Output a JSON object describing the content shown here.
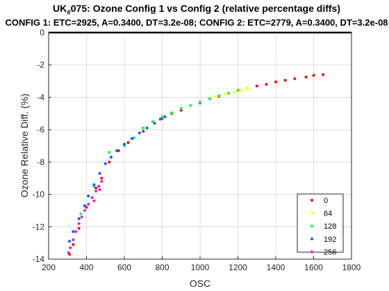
{
  "chart_data": {
    "type": "scatter",
    "title_prefix": "UK",
    "title_sub": "#",
    "title_rest": "075: Ozone Config 1 vs Config 2 (relative percentage diffs)",
    "subtitle": "CONFIG 1: ETC=2925, A=0.3400, DT=3.2e-08; CONFIG 2: ETC=2779, A=0.3400, DT=3.2e-08",
    "xlabel": "OSC",
    "ylabel": "Ozone Relative Diff. (%)",
    "xlim": [
      200,
      1800
    ],
    "ylim": [
      -14,
      0
    ],
    "xticks": [
      200,
      400,
      600,
      800,
      1000,
      1200,
      1400,
      1600,
      1800
    ],
    "yticks": [
      0,
      -2,
      -4,
      -6,
      -8,
      -10,
      -12,
      -14
    ],
    "grid": true,
    "legend_position": "bottom-right",
    "series": [
      {
        "name": "0",
        "color": "#ff0000",
        "points": [
          [
            310,
            -13.7
          ],
          [
            330,
            -13.1
          ],
          [
            360,
            -12.1
          ],
          [
            400,
            -10.8
          ],
          [
            450,
            -9.6
          ],
          [
            480,
            -9.0
          ],
          [
            520,
            -8.0
          ],
          [
            570,
            -7.3
          ],
          [
            620,
            -6.8
          ],
          [
            700,
            -6.1
          ],
          [
            800,
            -5.3
          ],
          [
            850,
            -5.0
          ],
          [
            900,
            -4.8
          ],
          [
            1000,
            -4.35
          ],
          [
            1100,
            -3.95
          ],
          [
            1200,
            -3.6
          ],
          [
            1300,
            -3.3
          ],
          [
            1400,
            -3.05
          ],
          [
            1500,
            -2.85
          ],
          [
            1600,
            -2.65
          ],
          [
            1650,
            -2.6
          ],
          [
            1560,
            -2.75
          ],
          [
            1450,
            -2.95
          ],
          [
            1350,
            -3.2
          ],
          [
            1250,
            -3.45
          ]
        ]
      },
      {
        "name": "64",
        "color": "#ffff00",
        "points": [
          [
            1100,
            -3.9
          ],
          [
            1150,
            -3.75
          ],
          [
            1200,
            -3.6
          ],
          [
            1250,
            -3.45
          ],
          [
            1130,
            -3.8
          ],
          [
            1180,
            -3.68
          ],
          [
            1080,
            -3.95
          ],
          [
            1220,
            -3.55
          ]
        ]
      },
      {
        "name": "128",
        "color": "#00ff40",
        "points": [
          [
            370,
            -11.2
          ],
          [
            440,
            -9.5
          ],
          [
            520,
            -7.4
          ],
          [
            600,
            -7.0
          ],
          [
            650,
            -6.5
          ],
          [
            700,
            -5.9
          ],
          [
            750,
            -5.5
          ],
          [
            800,
            -5.2
          ],
          [
            850,
            -4.95
          ],
          [
            900,
            -4.7
          ],
          [
            950,
            -4.5
          ],
          [
            1000,
            -4.3
          ],
          [
            1050,
            -4.1
          ],
          [
            1100,
            -3.9
          ],
          [
            1150,
            -3.75
          ],
          [
            1200,
            -3.55
          ]
        ]
      },
      {
        "name": "192",
        "color": "#0060ff",
        "points": [
          [
            310,
            -12.9
          ],
          [
            330,
            -12.3
          ],
          [
            360,
            -11.5
          ],
          [
            390,
            -10.7
          ],
          [
            410,
            -10.1
          ],
          [
            440,
            -9.4
          ],
          [
            470,
            -8.7
          ],
          [
            500,
            -8.1
          ],
          [
            530,
            -7.7
          ],
          [
            560,
            -7.3
          ],
          [
            600,
            -6.9
          ],
          [
            640,
            -6.55
          ],
          [
            680,
            -6.2
          ],
          [
            720,
            -5.9
          ],
          [
            760,
            -5.6
          ],
          [
            790,
            -5.35
          ],
          [
            815,
            -5.2
          ]
        ]
      },
      {
        "name": "256",
        "color": "#e020e0",
        "points": [
          [
            305,
            -13.6
          ],
          [
            315,
            -13.3
          ],
          [
            330,
            -12.8
          ],
          [
            345,
            -12.3
          ],
          [
            360,
            -11.8
          ],
          [
            375,
            -11.4
          ],
          [
            390,
            -11.0
          ],
          [
            410,
            -10.6
          ],
          [
            430,
            -10.2
          ],
          [
            450,
            -9.8
          ],
          [
            465,
            -9.5
          ],
          [
            480,
            -9.2
          ],
          [
            470,
            -9.7
          ],
          [
            440,
            -10.4
          ]
        ]
      }
    ]
  }
}
